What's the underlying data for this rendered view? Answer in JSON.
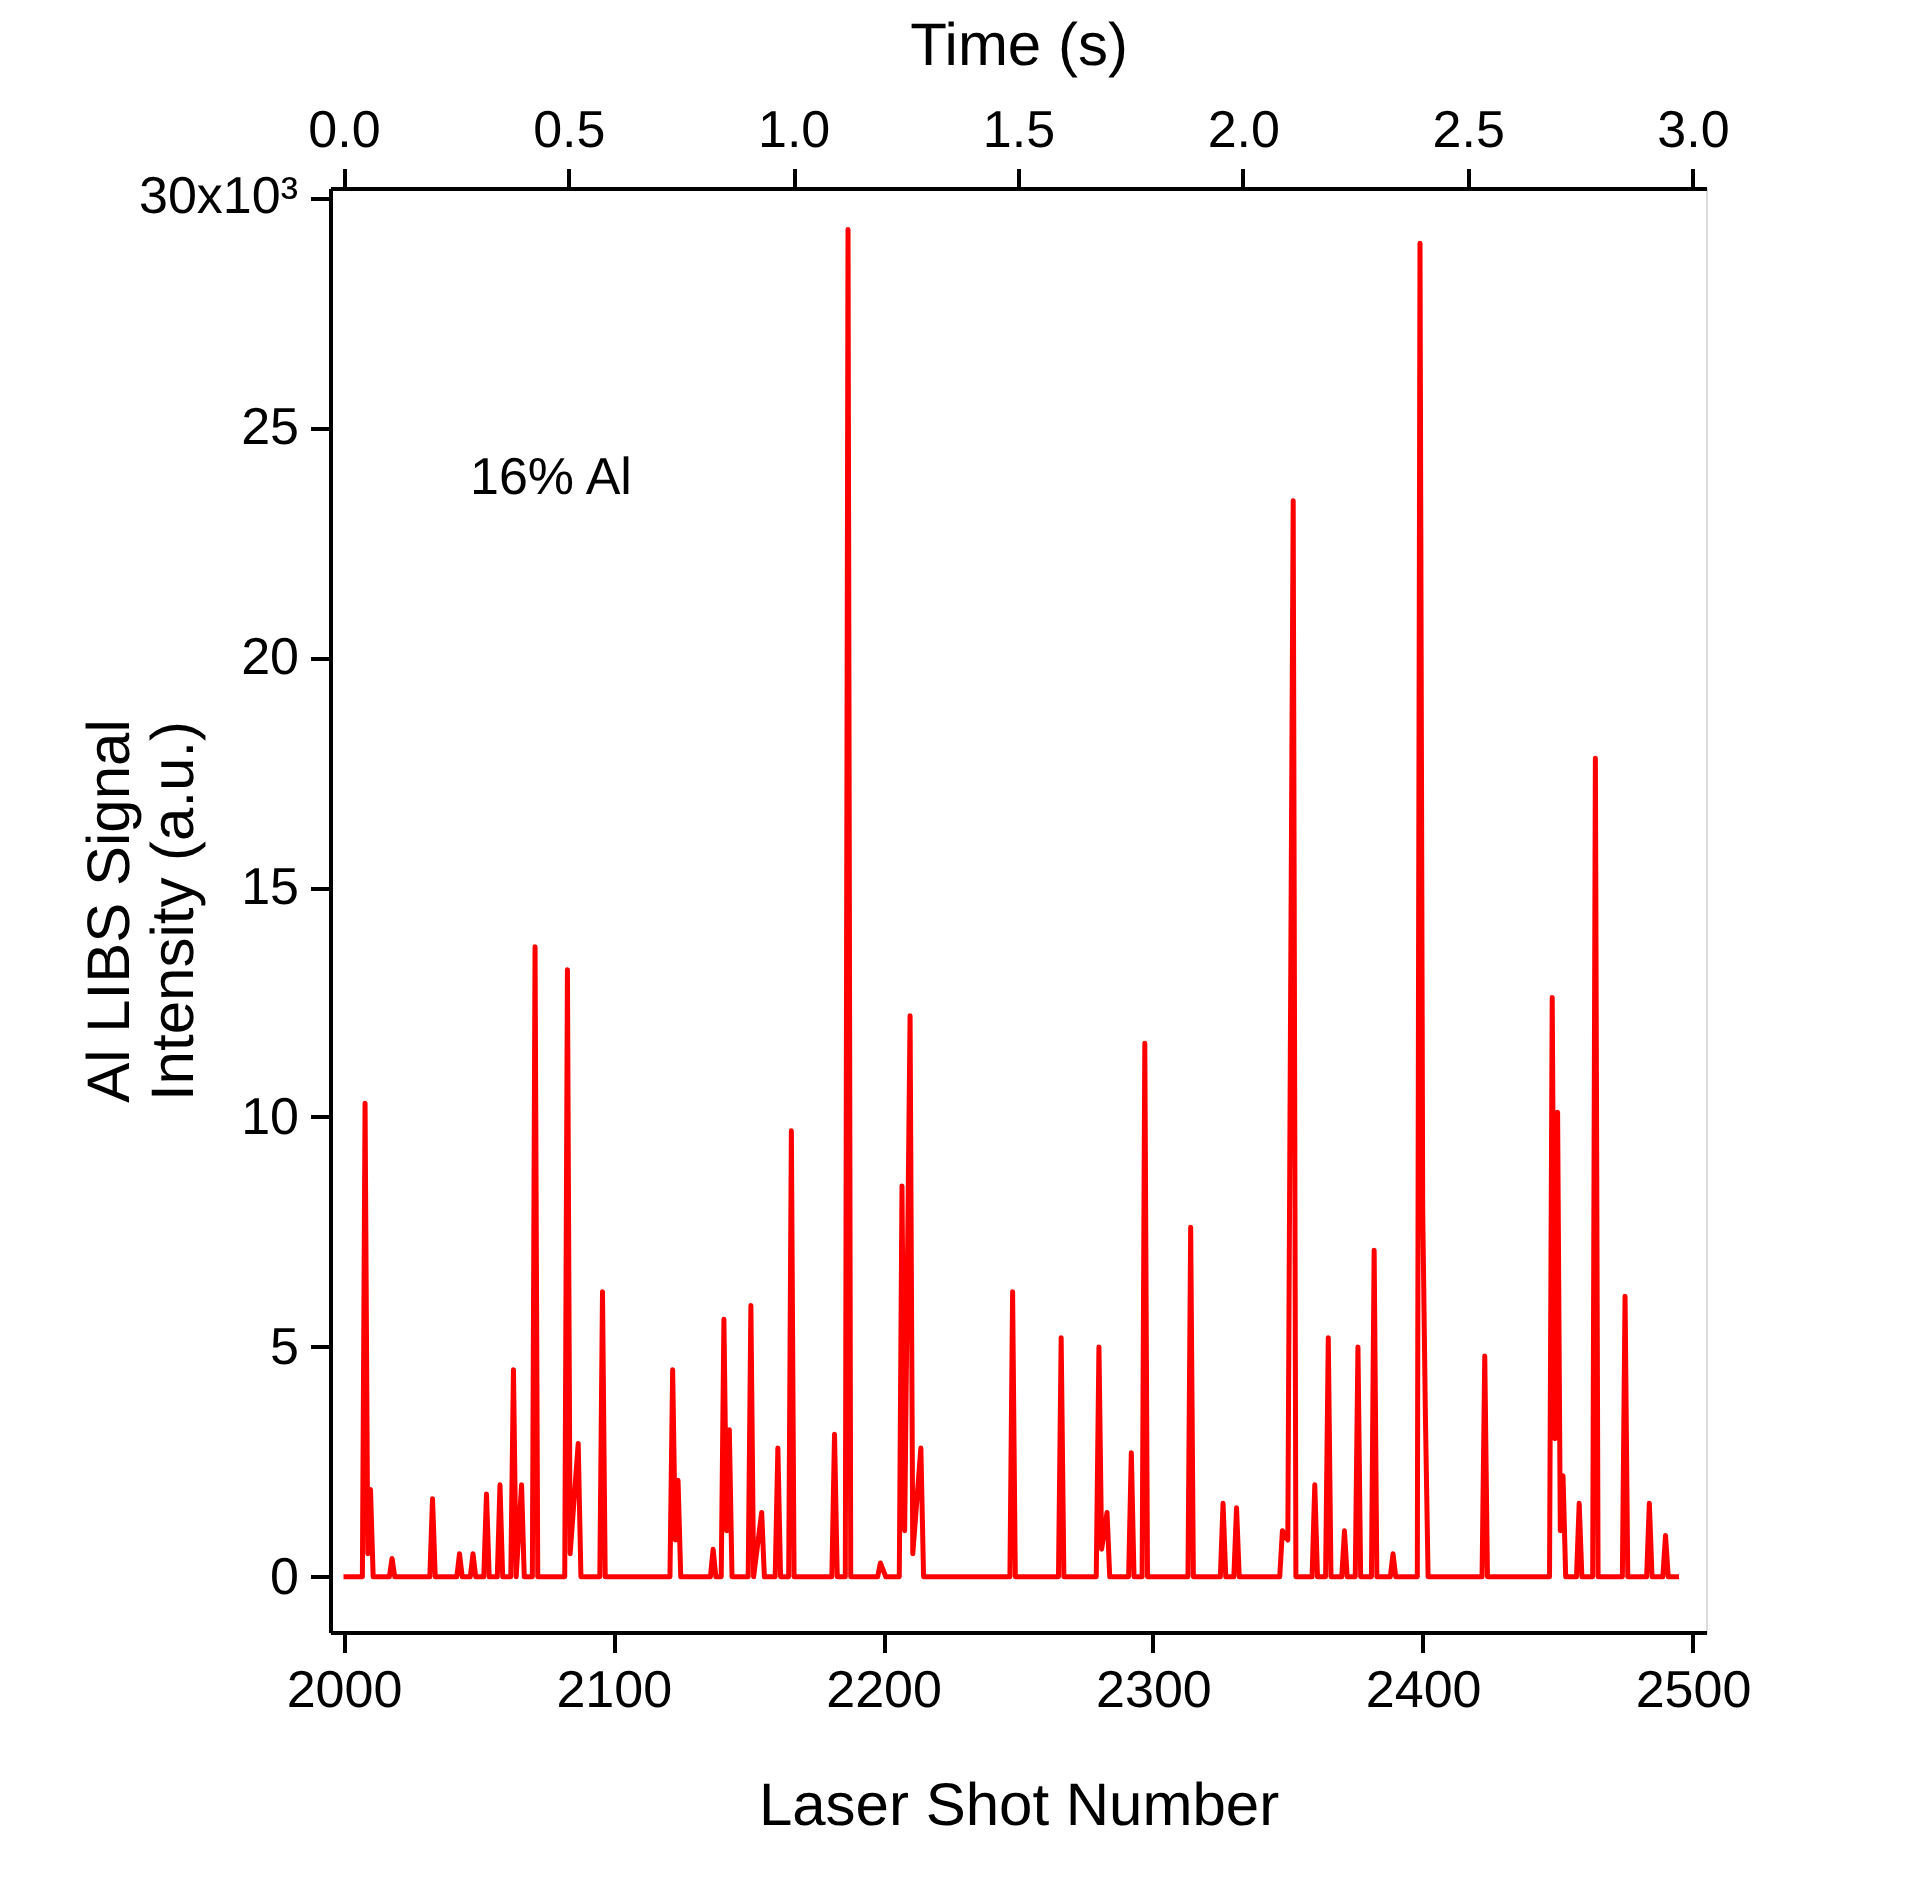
{
  "chart_data": {
    "type": "line",
    "xlabel": "Laser Shot Number",
    "ylabel": "Al LIBS Signal\nIntensity (a.u.)",
    "x2label": "Time (s)",
    "annotations": [
      "30x10³",
      "16% Al"
    ],
    "xlim": [
      1995,
      2505
    ],
    "xticks": [
      2000,
      2100,
      2200,
      2300,
      2400,
      2500
    ],
    "x2lim": [
      -0.03,
      3.03
    ],
    "x2ticks": [
      {
        "value": 0,
        "label": "0.0"
      },
      {
        "value": 0.5,
        "label": "0.5"
      },
      {
        "value": 1,
        "label": "1.0"
      },
      {
        "value": 1.5,
        "label": "1.5"
      },
      {
        "value": 2,
        "label": "2.0"
      },
      {
        "value": 2.5,
        "label": "2.5"
      },
      {
        "value": 3,
        "label": "3.0"
      }
    ],
    "ylim": [
      -1.2,
      30.2
    ],
    "yticks": [
      0,
      5,
      10,
      15,
      20,
      25,
      {
        "value": 30,
        "label": null
      }
    ],
    "grid": false,
    "series": [
      {
        "color": "#ff0000",
        "x": [
          2000,
          2007,
          2008,
          2009,
          2010,
          2011,
          2017,
          2018,
          2019,
          2032,
          2033,
          2034,
          2042,
          2043,
          2044,
          2047,
          2048,
          2049,
          2052,
          2053,
          2054,
          2057,
          2058,
          2059,
          2062,
          2063,
          2064,
          2066,
          2067,
          2070,
          2071,
          2072,
          2082,
          2083,
          2084,
          2087,
          2088,
          2095,
          2096,
          2097,
          2121,
          2122,
          2123,
          2124,
          2125,
          2136,
          2137,
          2138,
          2140,
          2141,
          2142,
          2143,
          2144,
          2150,
          2151,
          2152,
          2155,
          2156,
          2160,
          2161,
          2162,
          2165,
          2166,
          2167,
          2181,
          2182,
          2183,
          2186,
          2187,
          2188,
          2198,
          2199,
          2201,
          2206,
          2207,
          2208,
          2210,
          2211,
          2214,
          2215,
          2247,
          2248,
          2249,
          2265,
          2266,
          2267,
          2279,
          2280,
          2281,
          2283,
          2284,
          2291,
          2292,
          2293,
          2296,
          2297,
          2298,
          2313,
          2314,
          2315,
          2325,
          2326,
          2327,
          2330,
          2331,
          2332,
          2347,
          2348,
          2350,
          2352,
          2353,
          2359,
          2360,
          2361,
          2364,
          2365,
          2366,
          2370,
          2371,
          2372,
          2375,
          2376,
          2377,
          2381,
          2382,
          2383,
          2388,
          2389,
          2390,
          2398,
          2399,
          2400,
          2401,
          2402,
          2422,
          2423,
          2424,
          2447,
          2448,
          2449,
          2450,
          2451,
          2452,
          2453,
          2457,
          2458,
          2459,
          2463,
          2464,
          2465,
          2474,
          2475,
          2476,
          2483,
          2484,
          2485,
          2489,
          2490,
          2491,
          2495
        ],
        "values": [
          0,
          0,
          10.3,
          0.5,
          1.9,
          0,
          0,
          0.4,
          0,
          0,
          1.7,
          0,
          0,
          0.5,
          0,
          0,
          0.5,
          0,
          0,
          1.8,
          0,
          0,
          2.0,
          0,
          0,
          4.5,
          0,
          2.0,
          0,
          0,
          13.7,
          0,
          0,
          13.2,
          0.5,
          2.9,
          0,
          0,
          6.2,
          0,
          0,
          4.5,
          0.8,
          2.1,
          0,
          0,
          0.6,
          0,
          0,
          5.6,
          1.0,
          3.2,
          0,
          0,
          5.9,
          0,
          1.4,
          0,
          0,
          2.8,
          0,
          0,
          9.7,
          0,
          0,
          3.1,
          0,
          0,
          29.3,
          0,
          0,
          0.3,
          0,
          0,
          8.5,
          1.0,
          12.2,
          0.5,
          2.8,
          0,
          0,
          6.2,
          0,
          0,
          5.2,
          0,
          0,
          5.0,
          0.6,
          1.4,
          0,
          0,
          2.7,
          0,
          0,
          11.6,
          0,
          0,
          7.6,
          0,
          0,
          1.6,
          0,
          0,
          1.5,
          0,
          0,
          1.0,
          0.8,
          23.4,
          0,
          0,
          2.0,
          0,
          0,
          5.2,
          0,
          0,
          1.0,
          0,
          0,
          5.0,
          0,
          0,
          7.1,
          0,
          0,
          0.5,
          0,
          0,
          29.0,
          8,
          3.5,
          0,
          0,
          4.8,
          0,
          0,
          12.6,
          3,
          10.1,
          1,
          2.2,
          0,
          0,
          1.6,
          0,
          0,
          17.8,
          0,
          0,
          6.1,
          0,
          0,
          1.6,
          0,
          0,
          0.9,
          0,
          0
        ]
      }
    ]
  }
}
